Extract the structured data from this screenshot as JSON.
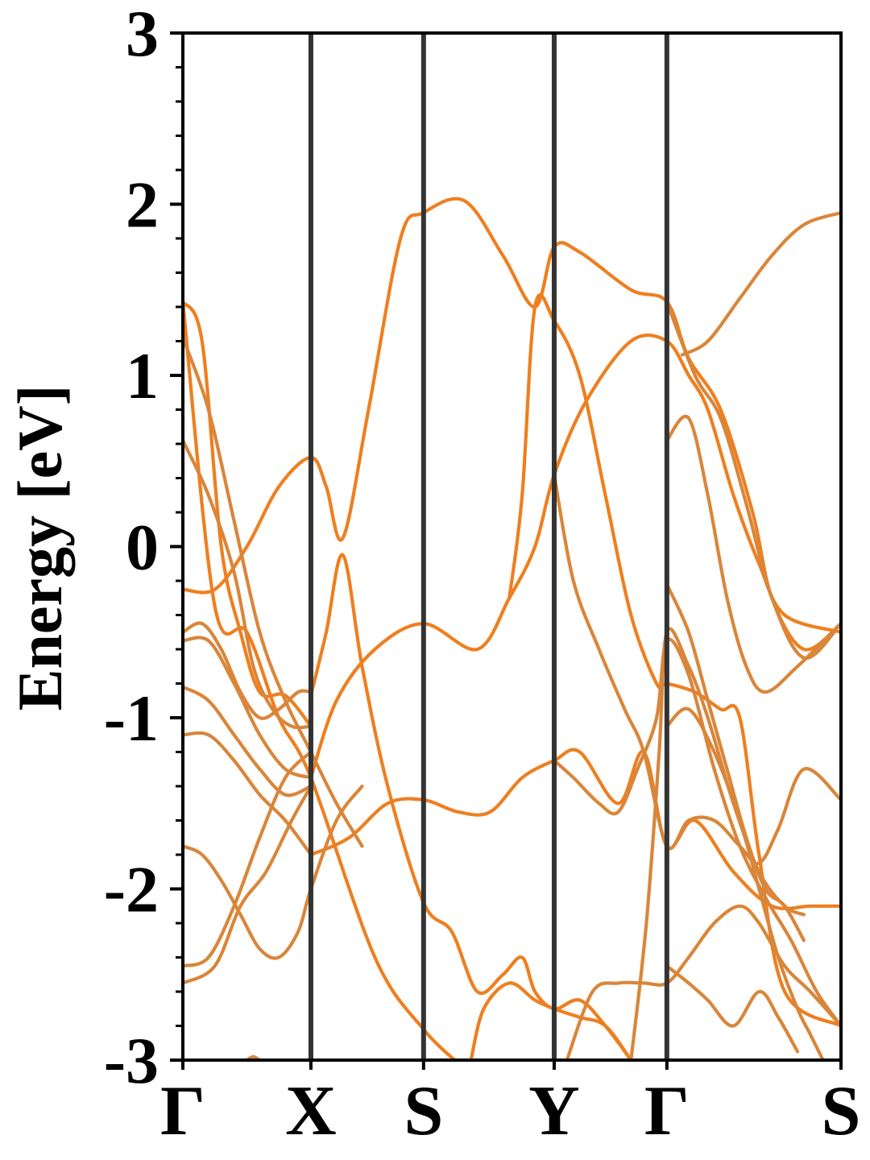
{
  "chart_data": {
    "type": "line",
    "title": "",
    "xlabel": "",
    "ylabel": "Energy [eV]",
    "ylim": [
      -3,
      3
    ],
    "yticks": [
      -3,
      -2,
      -1,
      0,
      1,
      2,
      3
    ],
    "ytick_labels": [
      "-3",
      "-2",
      "-1",
      "0",
      "1",
      "2",
      "3"
    ],
    "grid": false,
    "k_points": [
      {
        "label": "Γ",
        "x": 0.0
      },
      {
        "label": "X",
        "x": 1.0
      },
      {
        "label": "S",
        "x": 1.88
      },
      {
        "label": "Y",
        "x": 2.9
      },
      {
        "label": "Γ",
        "x": 3.78
      },
      {
        "label": "S",
        "x": 5.14
      }
    ],
    "xlim": [
      0,
      5.14
    ],
    "colors": {
      "band_primary": "#ee7f1f",
      "band_secondary": "#d9863a",
      "kline": "#333333",
      "axis": "#000000"
    },
    "series": [
      {
        "color_key": "band_primary",
        "points": [
          [
            0,
            1.43
          ],
          [
            0.25,
            -0.35
          ],
          [
            0.5,
            -0.5
          ],
          [
            0.75,
            -1.0
          ],
          [
            1.0,
            -1.35
          ],
          [
            1.5,
            -2.4
          ],
          [
            1.88,
            -2.82
          ],
          [
            2.2,
            -3.05
          ]
        ]
      },
      {
        "color_key": "band_primary",
        "points": [
          [
            0,
            1.43
          ],
          [
            0.15,
            1.2
          ],
          [
            0.3,
            0.0
          ],
          [
            0.45,
            -0.5
          ],
          [
            0.6,
            -0.85
          ],
          [
            0.8,
            -0.87
          ],
          [
            1.0,
            -1.05
          ]
        ]
      },
      {
        "color_key": "band_primary",
        "points": [
          [
            0,
            -0.25
          ],
          [
            0.25,
            -0.25
          ],
          [
            0.5,
            0.0
          ],
          [
            0.75,
            0.35
          ],
          [
            1.0,
            0.52
          ],
          [
            1.12,
            0.35
          ],
          [
            1.25,
            0.05
          ],
          [
            1.45,
            0.8
          ],
          [
            1.7,
            1.8
          ],
          [
            1.88,
            1.95
          ],
          [
            2.2,
            2.02
          ],
          [
            2.5,
            1.7
          ],
          [
            2.75,
            1.4
          ],
          [
            2.9,
            1.75
          ],
          [
            3.1,
            1.72
          ],
          [
            3.5,
            1.5
          ],
          [
            3.78,
            1.43
          ],
          [
            3.95,
            1.1
          ],
          [
            4.2,
            0.8
          ],
          [
            4.45,
            0.2
          ],
          [
            4.6,
            -0.3
          ],
          [
            4.85,
            -0.6
          ],
          [
            5.14,
            -0.45
          ]
        ]
      },
      {
        "color_key": "band_primary",
        "points": [
          [
            1.0,
            -0.87
          ],
          [
            1.12,
            -0.5
          ],
          [
            1.25,
            -0.05
          ],
          [
            1.4,
            -0.7
          ],
          [
            1.6,
            -1.4
          ],
          [
            1.88,
            -2.08
          ],
          [
            2.1,
            -2.25
          ],
          [
            2.3,
            -2.6
          ],
          [
            2.5,
            -2.5
          ],
          [
            2.65,
            -2.4
          ],
          [
            2.75,
            -2.6
          ],
          [
            2.9,
            -2.7
          ],
          [
            3.1,
            -2.65
          ],
          [
            3.3,
            -2.8
          ],
          [
            3.5,
            -3.0
          ]
        ]
      },
      {
        "color_key": "band_primary",
        "points": [
          [
            1.0,
            -1.35
          ],
          [
            1.2,
            -0.9
          ],
          [
            1.5,
            -0.6
          ],
          [
            1.88,
            -0.45
          ],
          [
            2.3,
            -0.6
          ],
          [
            2.55,
            -0.3
          ],
          [
            2.75,
            0.0
          ],
          [
            2.9,
            0.42
          ],
          [
            3.15,
            0.85
          ],
          [
            3.5,
            1.2
          ],
          [
            3.78,
            1.2
          ],
          [
            3.95,
            1.0
          ],
          [
            4.1,
            0.8
          ],
          [
            4.3,
            0.3
          ],
          [
            4.5,
            -0.1
          ],
          [
            4.7,
            -0.4
          ],
          [
            5.14,
            -0.5
          ]
        ]
      },
      {
        "color_key": "band_primary",
        "points": [
          [
            1.0,
            -1.8
          ],
          [
            1.3,
            -1.7
          ],
          [
            1.6,
            -1.5
          ],
          [
            1.88,
            -1.48
          ],
          [
            2.15,
            -1.55
          ],
          [
            2.4,
            -1.55
          ],
          [
            2.65,
            -1.35
          ],
          [
            2.9,
            -1.25
          ],
          [
            3.1,
            -1.2
          ],
          [
            3.4,
            -1.5
          ],
          [
            3.6,
            -1.2
          ],
          [
            3.78,
            -1.75
          ],
          [
            4.0,
            -1.6
          ],
          [
            4.3,
            -1.9
          ],
          [
            4.6,
            -2.1
          ],
          [
            4.9,
            -2.1
          ],
          [
            5.14,
            -2.1
          ]
        ]
      },
      {
        "color_key": "band_primary",
        "points": [
          [
            2.25,
            -3.0
          ],
          [
            2.35,
            -2.7
          ],
          [
            2.55,
            -2.55
          ],
          [
            2.75,
            -2.65
          ],
          [
            2.9,
            -2.7
          ],
          [
            3.1,
            -2.75
          ],
          [
            3.3,
            -2.8
          ],
          [
            3.5,
            -3.0
          ]
        ]
      },
      {
        "color_key": "band_primary",
        "points": [
          [
            2.55,
            -0.3
          ],
          [
            2.65,
            0.3
          ],
          [
            2.75,
            1.4
          ],
          [
            2.9,
            1.32
          ],
          [
            3.1,
            1.0
          ],
          [
            3.3,
            0.3
          ],
          [
            3.5,
            -0.4
          ],
          [
            3.7,
            -0.8
          ],
          [
            3.78,
            -0.8
          ],
          [
            4.0,
            -0.85
          ],
          [
            4.2,
            -0.95
          ],
          [
            4.35,
            -1.0
          ],
          [
            4.5,
            -1.8
          ],
          [
            4.7,
            -2.6
          ],
          [
            5.14,
            -2.8
          ]
        ]
      },
      {
        "color_key": "band_secondary",
        "points": [
          [
            0,
            1.22
          ],
          [
            0.2,
            0.8
          ],
          [
            0.4,
            0.15
          ],
          [
            0.6,
            -0.5
          ],
          [
            0.8,
            -0.9
          ],
          [
            1.0,
            -1.2
          ],
          [
            1.2,
            -1.5
          ],
          [
            1.4,
            -1.75
          ]
        ]
      },
      {
        "color_key": "band_secondary",
        "points": [
          [
            0,
            0.62
          ],
          [
            0.2,
            0.3
          ],
          [
            0.4,
            -0.15
          ],
          [
            0.55,
            -0.7
          ],
          [
            0.7,
            -0.95
          ],
          [
            0.85,
            -1.05
          ],
          [
            1.0,
            -1.05
          ]
        ]
      },
      {
        "color_key": "band_secondary",
        "points": [
          [
            0,
            -0.5
          ],
          [
            0.15,
            -0.45
          ],
          [
            0.3,
            -0.6
          ],
          [
            0.45,
            -0.85
          ],
          [
            0.6,
            -1.0
          ],
          [
            0.75,
            -0.95
          ],
          [
            0.9,
            -0.85
          ],
          [
            1.0,
            -0.85
          ]
        ]
      },
      {
        "color_key": "band_secondary",
        "points": [
          [
            0,
            -0.55
          ],
          [
            0.2,
            -0.55
          ],
          [
            0.4,
            -0.8
          ],
          [
            0.6,
            -1.1
          ],
          [
            0.8,
            -1.3
          ],
          [
            1.0,
            -1.35
          ]
        ]
      },
      {
        "color_key": "band_secondary",
        "points": [
          [
            0,
            -0.82
          ],
          [
            0.2,
            -0.9
          ],
          [
            0.4,
            -1.1
          ],
          [
            0.6,
            -1.3
          ],
          [
            0.8,
            -1.45
          ],
          [
            1.0,
            -1.4
          ]
        ]
      },
      {
        "color_key": "band_secondary",
        "points": [
          [
            0,
            -1.1
          ],
          [
            0.2,
            -1.1
          ],
          [
            0.4,
            -1.25
          ],
          [
            0.6,
            -1.45
          ],
          [
            0.8,
            -1.6
          ],
          [
            1.0,
            -1.8
          ]
        ]
      },
      {
        "color_key": "band_secondary",
        "points": [
          [
            0,
            -1.75
          ],
          [
            0.15,
            -1.8
          ],
          [
            0.3,
            -1.95
          ],
          [
            0.45,
            -2.15
          ],
          [
            0.6,
            -2.35
          ],
          [
            0.75,
            -2.4
          ],
          [
            0.9,
            -2.25
          ],
          [
            1.0,
            -2.0
          ],
          [
            1.2,
            -1.6
          ],
          [
            1.4,
            -1.4
          ]
        ]
      },
      {
        "color_key": "band_secondary",
        "points": [
          [
            0,
            -2.45
          ],
          [
            0.2,
            -2.4
          ],
          [
            0.4,
            -2.1
          ],
          [
            0.6,
            -1.7
          ],
          [
            0.8,
            -1.35
          ],
          [
            1.0,
            -1.2
          ]
        ]
      },
      {
        "color_key": "band_secondary",
        "points": [
          [
            0,
            -2.55
          ],
          [
            0.25,
            -2.45
          ],
          [
            0.45,
            -2.1
          ],
          [
            0.65,
            -1.9
          ],
          [
            0.85,
            -1.6
          ],
          [
            1.0,
            -1.4
          ]
        ]
      },
      {
        "color_key": "band_secondary",
        "points": [
          [
            0.5,
            -3.0
          ],
          [
            0.55,
            -2.98
          ],
          [
            0.6,
            -3.0
          ]
        ]
      },
      {
        "color_key": "band_secondary",
        "points": [
          [
            2.9,
            0.42
          ],
          [
            3.05,
            -0.2
          ],
          [
            3.25,
            -0.6
          ],
          [
            3.45,
            -0.95
          ],
          [
            3.6,
            -1.2
          ],
          [
            3.78,
            -1.75
          ],
          [
            3.95,
            -1.6
          ],
          [
            4.15,
            -1.6
          ],
          [
            4.35,
            -1.75
          ],
          [
            4.5,
            -1.85
          ],
          [
            4.65,
            -1.65
          ],
          [
            4.85,
            -1.3
          ],
          [
            5.14,
            -1.48
          ]
        ]
      },
      {
        "color_key": "band_secondary",
        "points": [
          [
            2.9,
            -1.25
          ],
          [
            3.05,
            -1.35
          ],
          [
            3.25,
            -1.5
          ],
          [
            3.4,
            -1.55
          ],
          [
            3.55,
            -1.3
          ],
          [
            3.7,
            -1.0
          ],
          [
            3.78,
            -0.55
          ],
          [
            3.95,
            -0.75
          ],
          [
            4.15,
            -1.3
          ],
          [
            4.35,
            -1.75
          ],
          [
            4.55,
            -2.05
          ],
          [
            4.75,
            -2.3
          ],
          [
            4.95,
            -2.6
          ],
          [
            5.14,
            -2.8
          ]
        ]
      },
      {
        "color_key": "band_secondary",
        "points": [
          [
            3.0,
            -3.0
          ],
          [
            3.2,
            -2.6
          ],
          [
            3.4,
            -2.55
          ],
          [
            3.6,
            -2.55
          ],
          [
            3.78,
            -2.55
          ],
          [
            3.95,
            -2.4
          ],
          [
            4.15,
            -2.2
          ],
          [
            4.35,
            -2.1
          ],
          [
            4.5,
            -2.2
          ],
          [
            4.7,
            -2.45
          ],
          [
            4.9,
            -2.6
          ],
          [
            5.14,
            -2.8
          ]
        ]
      },
      {
        "color_key": "band_secondary",
        "points": [
          [
            3.78,
            0.62
          ],
          [
            3.95,
            0.75
          ],
          [
            4.1,
            0.3
          ],
          [
            4.25,
            -0.3
          ],
          [
            4.4,
            -0.7
          ],
          [
            4.55,
            -0.85
          ],
          [
            4.8,
            -0.7
          ],
          [
            5.14,
            -0.45
          ]
        ]
      },
      {
        "color_key": "band_secondary",
        "points": [
          [
            3.78,
            -0.22
          ],
          [
            3.95,
            -0.5
          ],
          [
            4.1,
            -0.9
          ],
          [
            4.25,
            -1.3
          ],
          [
            4.4,
            -1.7
          ],
          [
            4.55,
            -2.0
          ],
          [
            4.7,
            -2.1
          ],
          [
            4.85,
            -2.3
          ]
        ]
      },
      {
        "color_key": "band_secondary",
        "points": [
          [
            3.5,
            -3.0
          ],
          [
            3.62,
            -2.2
          ],
          [
            3.72,
            -1.2
          ],
          [
            3.78,
            -0.5
          ],
          [
            3.95,
            -0.7
          ],
          [
            4.1,
            -1.0
          ],
          [
            4.3,
            -1.5
          ],
          [
            4.5,
            -1.9
          ],
          [
            4.7,
            -2.1
          ],
          [
            4.85,
            -2.15
          ]
        ]
      },
      {
        "color_key": "band_secondary",
        "points": [
          [
            3.78,
            -1.05
          ],
          [
            3.95,
            -0.95
          ],
          [
            4.15,
            -1.2
          ],
          [
            4.35,
            -1.6
          ],
          [
            4.5,
            -2.0
          ],
          [
            4.65,
            -2.4
          ],
          [
            4.8,
            -2.7
          ],
          [
            4.9,
            -2.85
          ],
          [
            5.0,
            -3.0
          ]
        ]
      },
      {
        "color_key": "band_secondary",
        "points": [
          [
            3.78,
            -2.45
          ],
          [
            3.95,
            -2.55
          ],
          [
            4.1,
            -2.65
          ],
          [
            4.3,
            -2.8
          ],
          [
            4.5,
            -2.6
          ],
          [
            4.65,
            -2.75
          ],
          [
            4.8,
            -2.95
          ]
        ]
      },
      {
        "color_key": "band_secondary",
        "points": [
          [
            3.78,
            1.43
          ],
          [
            4.0,
            1.0
          ],
          [
            4.2,
            0.75
          ],
          [
            4.4,
            0.25
          ],
          [
            4.6,
            -0.3
          ],
          [
            4.85,
            -0.65
          ],
          [
            5.14,
            -0.45
          ]
        ]
      },
      {
        "color_key": "band_secondary",
        "points": [
          [
            3.9,
            1.12
          ],
          [
            4.1,
            1.2
          ],
          [
            4.35,
            1.45
          ],
          [
            4.6,
            1.7
          ],
          [
            4.85,
            1.88
          ],
          [
            5.14,
            1.95
          ]
        ]
      }
    ]
  }
}
